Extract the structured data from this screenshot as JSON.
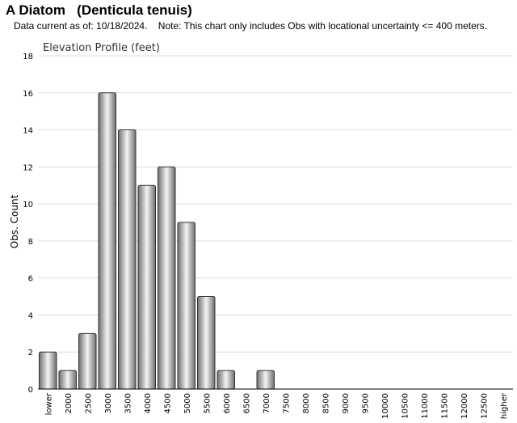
{
  "header": {
    "title": "A Diatom   (Denticula tenuis)",
    "subtitle": "Data current as of: 10/18/2024.    Note: This chart only includes Obs with locational uncertainty <= 400 meters."
  },
  "chart_data": {
    "type": "bar",
    "title": "Elevation Profile (feet)",
    "xlabel": "",
    "ylabel": "Obs. Count",
    "ylim": [
      0,
      18
    ],
    "yticks": [
      0,
      2,
      4,
      6,
      8,
      10,
      12,
      14,
      16,
      18
    ],
    "grid": true,
    "categories": [
      "lower",
      "2000",
      "2500",
      "3000",
      "3500",
      "4000",
      "4500",
      "5000",
      "5500",
      "6000",
      "6500",
      "7000",
      "7500",
      "8000",
      "8500",
      "9000",
      "9500",
      "10000",
      "10500",
      "11000",
      "11500",
      "12000",
      "12500",
      "higher"
    ],
    "values": [
      2,
      1,
      3,
      16,
      14,
      11,
      12,
      9,
      5,
      1,
      0,
      1,
      0,
      0,
      0,
      0,
      0,
      0,
      0,
      0,
      0,
      0,
      0,
      0
    ],
    "colors": {
      "bar_dark": "#6e6e6e",
      "bar_light": "#f4f4f4",
      "grid": "#dddddd",
      "axis": "#000000"
    }
  }
}
